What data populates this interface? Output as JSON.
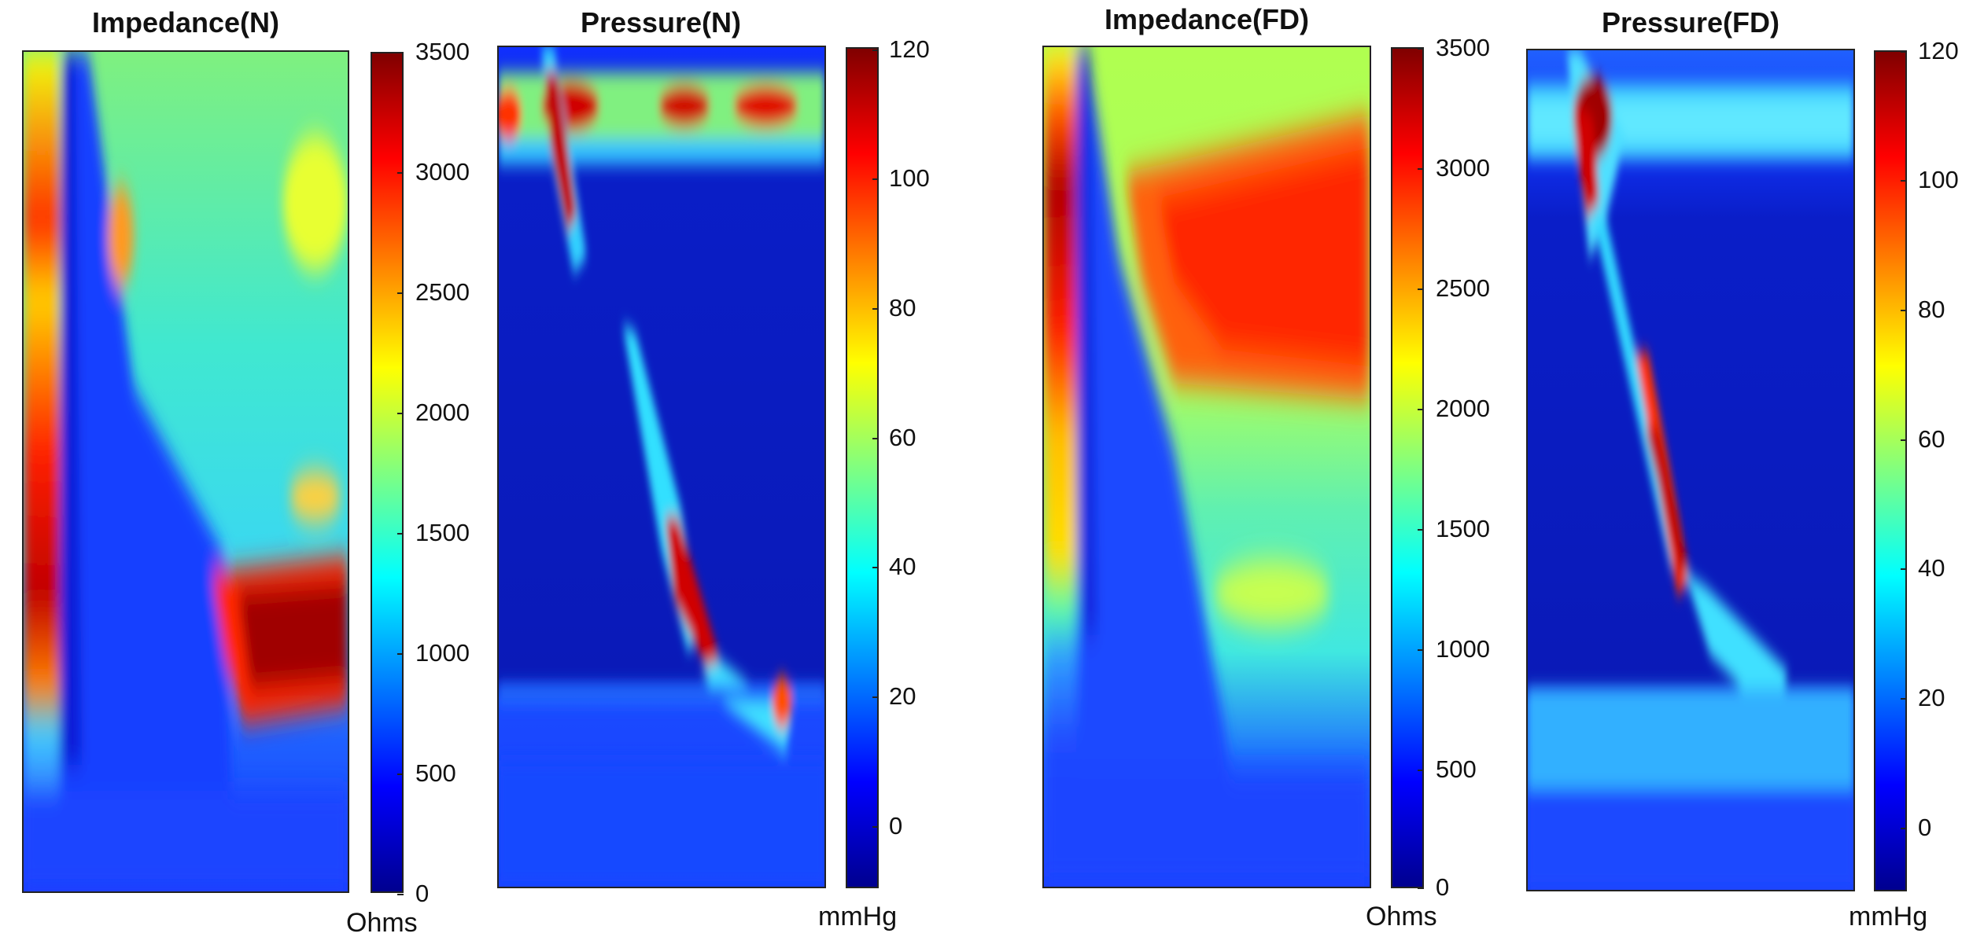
{
  "chart_data": [
    {
      "type": "heatmap",
      "title": "Impedance(N)",
      "colorbar": {
        "unit": "Ohms",
        "range": [
          0,
          3500
        ],
        "ticks": [
          "0",
          "500",
          "1000",
          "1500",
          "2000",
          "2500",
          "3000",
          "3500"
        ]
      },
      "colormap": "jet",
      "features": [
        {
          "kind": "high-band-left",
          "value": 3300
        },
        {
          "kind": "swallow-front",
          "value": 200
        },
        {
          "kind": "bolus-region",
          "value": 3500
        },
        {
          "kind": "background-upper",
          "value": 1700
        },
        {
          "kind": "background-lower",
          "value": 400
        }
      ]
    },
    {
      "type": "heatmap",
      "title": "Pressure(N)",
      "colorbar": {
        "unit": "mmHg",
        "range": [
          -10,
          120
        ],
        "ticks": [
          "0",
          "20",
          "40",
          "60",
          "80",
          "100",
          "120"
        ]
      },
      "colormap": "jet",
      "features": [
        {
          "kind": "UES-band",
          "value": 110
        },
        {
          "kind": "peristaltic-wave",
          "value": 120
        },
        {
          "kind": "LES-band",
          "value": 35
        },
        {
          "kind": "background",
          "value": 5
        }
      ]
    },
    {
      "type": "heatmap",
      "title": "Impedance(FD)",
      "colorbar": {
        "unit": "Ohms",
        "range": [
          0,
          3500
        ],
        "ticks": [
          "0",
          "500",
          "1000",
          "1500",
          "2000",
          "2500",
          "3000",
          "3500"
        ]
      },
      "colormap": "jet",
      "features": [
        {
          "kind": "high-band-left",
          "value": 3300
        },
        {
          "kind": "swallow-front",
          "value": 200
        },
        {
          "kind": "bolus-region",
          "value": 3100
        },
        {
          "kind": "background-upper",
          "value": 2200
        },
        {
          "kind": "background-lower",
          "value": 500
        }
      ]
    },
    {
      "type": "heatmap",
      "title": "Pressure(FD)",
      "colorbar": {
        "unit": "mmHg",
        "range": [
          -10,
          120
        ],
        "ticks": [
          "0",
          "20",
          "40",
          "60",
          "80",
          "100",
          "120"
        ]
      },
      "colormap": "jet",
      "features": [
        {
          "kind": "UES-band",
          "value": 115
        },
        {
          "kind": "peristaltic-wave",
          "value": 115
        },
        {
          "kind": "LES-band",
          "value": 40
        },
        {
          "kind": "background",
          "value": 10
        }
      ]
    }
  ]
}
